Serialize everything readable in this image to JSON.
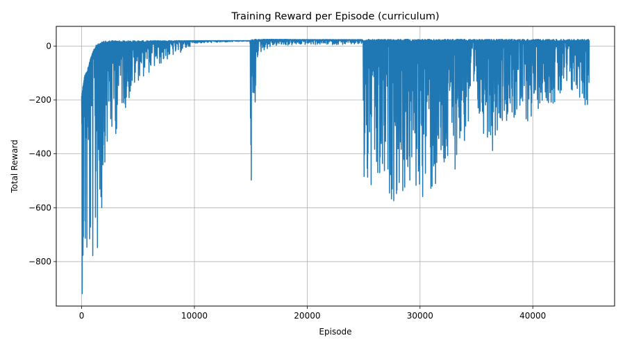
{
  "chart_data": {
    "type": "line",
    "title": "Training Reward per Episode (curriculum)",
    "xlabel": "Episode",
    "ylabel": "Total Reward",
    "xlim": [
      -2250,
      47250
    ],
    "ylim": [
      -965,
      73
    ],
    "xticks": [
      0,
      10000,
      20000,
      30000,
      40000
    ],
    "xtick_labels": [
      "0",
      "10000",
      "20000",
      "30000",
      "40000"
    ],
    "yticks": [
      0,
      -200,
      -400,
      -600,
      -800
    ],
    "ytick_labels": [
      "0",
      "−200",
      "−400",
      "−600",
      "−800"
    ],
    "grid": true,
    "color": "#1f77b4",
    "series": [
      {
        "envelope": [
          {
            "x": 0,
            "max": -180,
            "min": -930
          },
          {
            "x": 250,
            "max": -110,
            "min": -900
          },
          {
            "x": 500,
            "max": -90,
            "min": -910
          },
          {
            "x": 800,
            "max": -40,
            "min": -860
          },
          {
            "x": 1000,
            "max": -20,
            "min": -850
          },
          {
            "x": 1300,
            "max": 5,
            "min": -820
          },
          {
            "x": 1600,
            "max": 10,
            "min": -780
          },
          {
            "x": 1800,
            "max": 15,
            "min": -660
          },
          {
            "x": 2000,
            "max": 18,
            "min": -440
          },
          {
            "x": 2500,
            "max": 20,
            "min": -380
          },
          {
            "x": 3000,
            "max": 20,
            "min": -340
          },
          {
            "x": 3500,
            "max": 20,
            "min": -240
          },
          {
            "x": 4000,
            "max": 20,
            "min": -230
          },
          {
            "x": 5000,
            "max": 20,
            "min": -130
          },
          {
            "x": 6000,
            "max": 20,
            "min": -100
          },
          {
            "x": 7000,
            "max": 20,
            "min": -70
          },
          {
            "x": 8000,
            "max": 20,
            "min": -40
          },
          {
            "x": 9000,
            "max": 20,
            "min": -20
          },
          {
            "x": 10000,
            "max": 20,
            "min": 10
          },
          {
            "x": 14900,
            "max": 20,
            "min": 18
          },
          {
            "x": 15000,
            "max": 22,
            "min": -585
          },
          {
            "x": 15150,
            "max": 24,
            "min": -540
          },
          {
            "x": 15300,
            "max": 25,
            "min": -420
          },
          {
            "x": 15500,
            "max": 25,
            "min": -50
          },
          {
            "x": 16000,
            "max": 25,
            "min": -20
          },
          {
            "x": 17000,
            "max": 25,
            "min": 0
          },
          {
            "x": 20000,
            "max": 24,
            "min": 5
          },
          {
            "x": 24900,
            "max": 24,
            "min": 5
          },
          {
            "x": 25000,
            "max": 25,
            "min": -570
          },
          {
            "x": 26000,
            "max": 25,
            "min": -605
          },
          {
            "x": 27000,
            "max": 25,
            "min": -575
          },
          {
            "x": 28000,
            "max": 25,
            "min": -580
          },
          {
            "x": 29000,
            "max": 25,
            "min": -560
          },
          {
            "x": 30000,
            "max": 25,
            "min": -570
          },
          {
            "x": 31000,
            "max": 25,
            "min": -580
          },
          {
            "x": 32000,
            "max": 25,
            "min": -545
          },
          {
            "x": 33000,
            "max": 25,
            "min": -470
          },
          {
            "x": 34000,
            "max": 25,
            "min": -370
          },
          {
            "x": 35000,
            "max": 25,
            "min": -310
          },
          {
            "x": 36000,
            "max": 25,
            "min": -340
          },
          {
            "x": 36500,
            "max": 25,
            "min": -400
          },
          {
            "x": 37000,
            "max": 25,
            "min": -290
          },
          {
            "x": 38000,
            "max": 25,
            "min": -270
          },
          {
            "x": 39000,
            "max": 25,
            "min": -310
          },
          {
            "x": 40000,
            "max": 25,
            "min": -270
          },
          {
            "x": 41000,
            "max": 25,
            "min": -200
          },
          {
            "x": 42000,
            "max": 25,
            "min": -230
          },
          {
            "x": 43000,
            "max": 25,
            "min": -200
          },
          {
            "x": 44000,
            "max": 25,
            "min": -190
          },
          {
            "x": 44500,
            "max": 25,
            "min": -215
          },
          {
            "x": 45000,
            "max": 25,
            "min": -270
          }
        ]
      }
    ]
  }
}
